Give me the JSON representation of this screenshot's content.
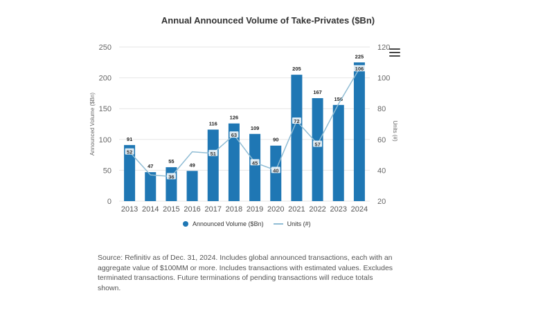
{
  "chart_data": {
    "type": "bar",
    "title": "Annual Announced Volume of Take-Privates ($Bn)",
    "categories": [
      "2013",
      "2014",
      "2015",
      "2016",
      "2017",
      "2018",
      "2019",
      "2020",
      "2021",
      "2022",
      "2023",
      "2024"
    ],
    "series": [
      {
        "name": "Announced Volume ($Bn)",
        "type": "bar",
        "axis": "left",
        "values": [
          91,
          47,
          55,
          49,
          116,
          126,
          109,
          90,
          205,
          167,
          156,
          225
        ]
      },
      {
        "name": "Units (#)",
        "type": "line",
        "axis": "right",
        "values": [
          52,
          37,
          36,
          52,
          51,
          63,
          45,
          40,
          72,
          57,
          83,
          106
        ]
      }
    ],
    "unit_labels": [
      "52",
      null,
      "36",
      null,
      "51",
      "63",
      "45",
      "40",
      "72",
      "57",
      null,
      "106"
    ],
    "ylabel": "Announced Volume ($Bn)",
    "y2label": "Units (#)",
    "ylim": [
      0,
      250
    ],
    "y2lim": [
      20,
      120
    ],
    "yticks": [
      "0",
      "50",
      "100",
      "150",
      "200",
      "250"
    ],
    "y2ticks": [
      "20",
      "40",
      "60",
      "80",
      "100",
      "120"
    ],
    "grid": true,
    "legend_position": "bottom",
    "colors": {
      "bar": "#1f77b4",
      "line": "#8fbcd4"
    }
  },
  "source_note": "Source: Refinitiv as of Dec. 31, 2024. Includes global announced transactions, each with an aggregate value of $100MM or more. Includes transactions with estimated values. Excludes terminated transactions. Future terminations of pending transactions will reduce totals shown.",
  "menu_icon": "hamburger-menu-icon"
}
